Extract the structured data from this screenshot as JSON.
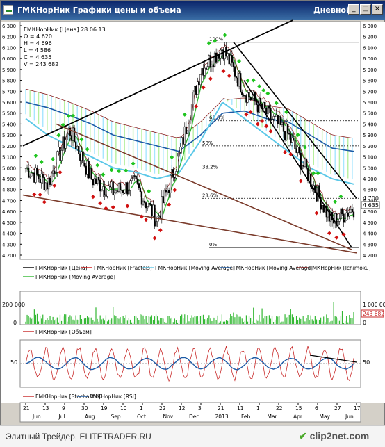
{
  "window": {
    "title": "ГМКНорНик Графики цены и объема",
    "period": "Дневной",
    "btn_min": "_",
    "btn_max": "□",
    "btn_close": "×"
  },
  "colors": {
    "background": "#ffffff",
    "candle_up": "#000000",
    "fractal_up": "#1fc41f",
    "fractal_down": "#d01010",
    "ma_light": "#5cc8e8",
    "ma_dark": "#1b5aa6",
    "ichimoku": "#8b2020",
    "ma_green": "#33b833",
    "trendline": "#7a3a2a",
    "stochastic": "#c82828",
    "rsi": "#1b5aa6",
    "volume": "#33b833"
  },
  "info_box": {
    "name": "ГМКНорНик [Цена] 28.06.13",
    "open": "O = 4 620",
    "high": "H = 4 696",
    "low": "L = 4 586",
    "close": "C = 4 635",
    "volume": "V = 243 682"
  },
  "fib_labels": [
    "100%",
    "61.8%",
    "50%",
    "38.2%",
    "23.6%",
    "0%"
  ],
  "price_axis_ticks": [
    "6 300",
    "6 200",
    "6 100",
    "6 000",
    "5 900",
    "5 800",
    "5 700",
    "5 600",
    "5 500",
    "5 400",
    "5 300",
    "5 200",
    "5 100",
    "5 000",
    "4 900",
    "4 800",
    "4 700",
    "4 600",
    "4 500",
    "4 400",
    "4 300",
    "4 200"
  ],
  "price_badges": {
    "last": "4 635",
    "top": "4 700"
  },
  "legend_main": [
    {
      "label": "ГМКНорНик [Цена]",
      "color": "#000000"
    },
    {
      "label": "ГМКНорНик [Fractals]",
      "color": "#d01010"
    },
    {
      "label": "ГМКНорНик [Moving Average]",
      "color": "#5cc8e8"
    },
    {
      "label": "ГМКНорНик [Moving Average]",
      "color": "#1b5aa6"
    },
    {
      "label": "ГМКНорНик [Ichimoku]",
      "color": "#8b2020"
    },
    {
      "label": "ГМКНорНик [Moving Average]",
      "color": "#33b833"
    }
  ],
  "volume_panel": {
    "left_tick": "200 000",
    "left_zero": "0",
    "right_tick": "1 000 000",
    "right_zero": "0",
    "last_badge": "243 682",
    "legend": "ГМКНорНик [Объем]"
  },
  "oscillator_panel": {
    "left_tick": "50",
    "right_tick": "50",
    "legend": [
      {
        "label": "ГМКНорНик [Stochastic]",
        "color": "#c82828"
      },
      {
        "label": "ГМКНорНик [RSI]",
        "color": "#1b5aa6"
      }
    ]
  },
  "x_day_ticks": [
    "21",
    "13",
    "9",
    "30",
    "19",
    "10",
    "1",
    "22",
    "12",
    "3",
    "21",
    "11",
    "1",
    "22",
    "15",
    "6",
    "27",
    "17"
  ],
  "x_month_ticks": [
    "Jun",
    "Jul",
    "Aug",
    "Sep",
    "Oct",
    "Nov",
    "Dec",
    "2013",
    "Feb",
    "Mar",
    "Apr",
    "May",
    "Jun"
  ],
  "footer": {
    "watermark": "Элитный Трейдер, ELITETRADER.RU",
    "logo_pre": "clip",
    "logo_post": "2net.com"
  },
  "chart_data": {
    "type": "line",
    "title": "ГМКНорНик [Цена] 28.06.13",
    "x": [
      "2012-05-21",
      "2012-06-15",
      "2012-07-13",
      "2012-08-09",
      "2012-09-07",
      "2012-10-01",
      "2012-11-01",
      "2012-12-03",
      "2012-12-21",
      "2013-01-21",
      "2013-02-11",
      "2013-03-01",
      "2013-04-01",
      "2013-05-06",
      "2013-06-17",
      "2013-06-28"
    ],
    "series": [
      {
        "name": "ГМКНорНик [Цена]",
        "values": [
          5000,
          4850,
          5350,
          4900,
          4780,
          4850,
          4520,
          5100,
          5900,
          6100,
          5700,
          5500,
          5300,
          4900,
          4500,
          4635
        ]
      },
      {
        "name": "ГМКНорНик [Moving Average]",
        "values": [
          5600,
          5550,
          5480,
          5400,
          5300,
          5250,
          5200,
          5150,
          5300,
          5500,
          5520,
          5450,
          5420,
          5300,
          5180,
          5150
        ]
      },
      {
        "name": "ГМКНорНик [Moving Average]",
        "values": [
          5450,
          5300,
          5200,
          5100,
          5000,
          4960,
          4900,
          4950,
          5250,
          5600,
          5450,
          5300,
          5150,
          5000,
          4900,
          4850
        ]
      }
    ],
    "ohlcv_last": {
      "open": 4620,
      "high": 4696,
      "low": 4586,
      "close": 4635,
      "volume": 243682
    },
    "fibonacci": [
      {
        "level": "100%",
        "price": 6150
      },
      {
        "level": "61.8%",
        "price": 5430
      },
      {
        "level": "50%",
        "price": 5200
      },
      {
        "level": "38.2%",
        "price": 4980
      },
      {
        "level": "23.6%",
        "price": 4720
      },
      {
        "level": "0%",
        "price": 4270
      }
    ],
    "ylim": [
      4200,
      6300
    ],
    "grid": false,
    "legend": "bottom"
  }
}
